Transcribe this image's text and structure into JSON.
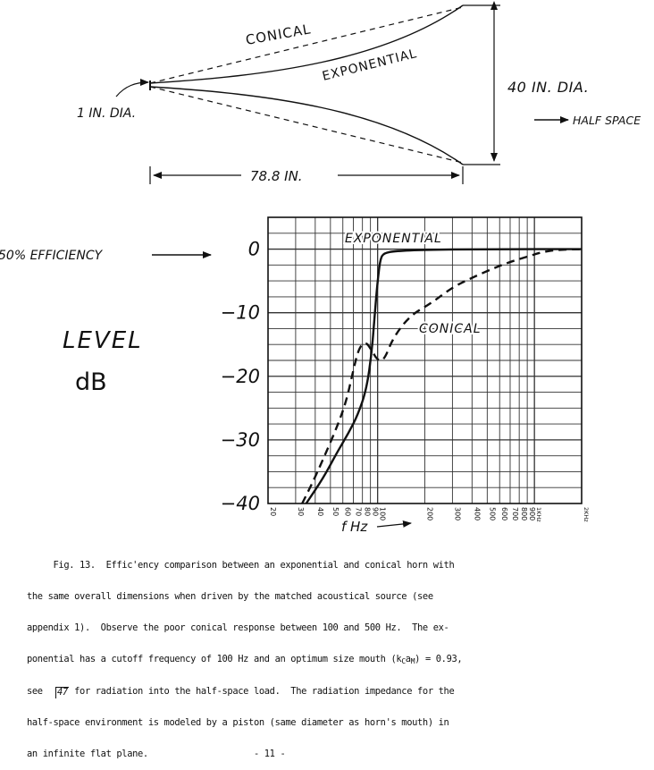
{
  "horn_diagram": {
    "label_conical": "CONICAL",
    "label_exponential": "EXPONENTIAL",
    "label_throat": "1 IN. DIA.",
    "label_mouth": "40 IN. DIA.",
    "label_load": "HALF SPACE",
    "label_length": "78.8 IN."
  },
  "chart_labels": {
    "efficiency_marker": "50% EFFICIENCY",
    "ylabel_line1": "LEVEL",
    "ylabel_line2": "dB",
    "xlabel": "f Hz"
  },
  "chart_data": {
    "type": "line",
    "x_scale": "log",
    "xlim": [
      20,
      2000
    ],
    "ylim": [
      -40,
      5
    ],
    "grid": true,
    "x_ticks": [
      "20",
      "30",
      "40",
      "50",
      "60",
      "70",
      "80",
      "90",
      "100",
      "200",
      "300",
      "400",
      "500",
      "600",
      "700",
      "800",
      "900",
      "1KHz",
      "2KHz"
    ],
    "y_ticks": [
      "0",
      "-10",
      "-20",
      "-30",
      "-40"
    ],
    "series": [
      {
        "name": "EXPONENTIAL",
        "style": "solid",
        "points": [
          [
            35,
            -40
          ],
          [
            45,
            -36
          ],
          [
            55,
            -32
          ],
          [
            65,
            -29
          ],
          [
            75,
            -26
          ],
          [
            85,
            -22
          ],
          [
            92,
            -16
          ],
          [
            96,
            -10
          ],
          [
            100,
            -5
          ],
          [
            104,
            -1.5
          ],
          [
            110,
            -0.6
          ],
          [
            130,
            -0.3
          ],
          [
            200,
            -0.1
          ],
          [
            500,
            0
          ],
          [
            2000,
            0
          ]
        ]
      },
      {
        "name": "CONICAL",
        "style": "dashed",
        "points": [
          [
            33,
            -40
          ],
          [
            38,
            -37
          ],
          [
            45,
            -33
          ],
          [
            55,
            -28
          ],
          [
            63,
            -24
          ],
          [
            70,
            -19
          ],
          [
            76,
            -15.5
          ],
          [
            84,
            -14.5
          ],
          [
            92,
            -16
          ],
          [
            100,
            -17.5
          ],
          [
            110,
            -17.5
          ],
          [
            125,
            -14
          ],
          [
            160,
            -10.5
          ],
          [
            220,
            -8.5
          ],
          [
            300,
            -6
          ],
          [
            400,
            -4.5
          ],
          [
            550,
            -3
          ],
          [
            700,
            -2
          ],
          [
            900,
            -1.2
          ],
          [
            1100,
            -0.5
          ],
          [
            1400,
            -0.1
          ],
          [
            2000,
            0
          ]
        ]
      }
    ]
  },
  "caption": {
    "lines": [
      "     Fig. 13.  Effic'ency comparison between an exponential and conical horn with",
      "the same overall dimensions when driven by the matched acoustical source (see",
      "appendix 1).  Observe the poor conical response between 100 and 500 Hz.  The ex-",
      "ponential has a cutoff frequency of 100 Hz and an optimum size mouth (k",
      "see      for radiation into the half-space load.  The radiation impedance for the",
      "half-space environment is modeled by a piston (same diameter as horn's mouth) in",
      "an infinite flat plane.                    - 11 -"
    ],
    "line4_suffix": " = 0.93,",
    "ka_sub": "C",
    "ka_a": "a",
    "ka_sub2": "M",
    "ka_close": ")",
    "ref": "47"
  },
  "colors": {
    "ink": "#111111",
    "paper": "#ffffff"
  }
}
